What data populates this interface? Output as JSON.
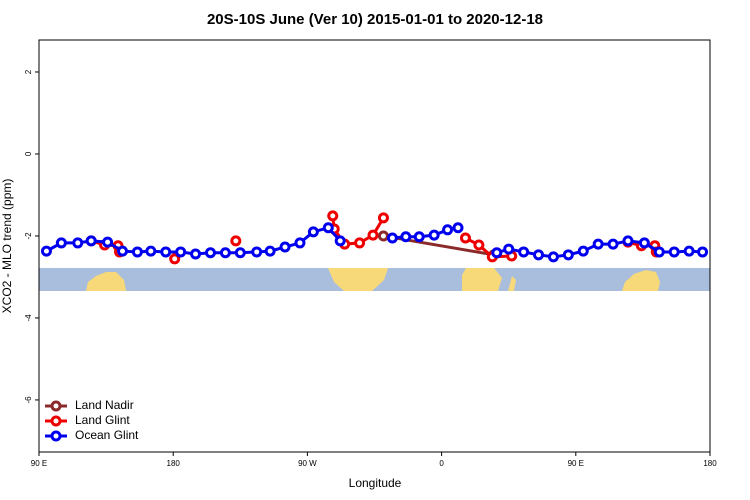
{
  "chart_data": {
    "type": "line",
    "title": "20S-10S June (Ver 10)   2015-01-01 to 2020-12-18",
    "x_label": "Longitude",
    "y_label": "XCO2 - MLO trend (ppm)",
    "xlim": [
      90,
      540
    ],
    "ylim": [
      -7.27,
      2.78
    ],
    "xticks": [
      {
        "value": 90,
        "label": "90 E"
      },
      180,
      {
        "value": 270,
        "label": "90 W"
      },
      {
        "value": 360,
        "label": "0"
      },
      {
        "value": 450,
        "label": "90 E"
      },
      {
        "value": 540,
        "label": "180"
      }
    ],
    "yticks": [
      -6,
      -4,
      -2,
      0,
      2
    ],
    "legend": "bottom-left",
    "series": [
      {
        "name": "Land Nadir",
        "color": "#8b2a2a",
        "x": [
          321,
          395
        ],
        "values": [
          -2.0,
          -2.46
        ]
      },
      {
        "name": "Land Glint",
        "color": "#ee0000",
        "x": [
          125,
          134,
          143,
          144,
          null,
          181,
          null,
          222,
          null,
          287,
          288,
          295,
          305,
          314,
          321,
          null,
          376,
          385,
          394,
          407,
          null,
          485,
          494,
          503,
          504
        ],
        "values": [
          -2.12,
          -2.22,
          -2.24,
          -2.39,
          null,
          -2.56,
          null,
          -2.12,
          null,
          -1.51,
          -1.83,
          -2.2,
          -2.17,
          -1.98,
          -1.56,
          null,
          -2.05,
          -2.22,
          -2.51,
          -2.49,
          null,
          -2.15,
          -2.24,
          -2.24,
          -2.39
        ]
      },
      {
        "name": "Ocean Glint",
        "color": "#0000ee",
        "x": [
          95,
          105,
          116,
          125,
          136,
          146,
          156,
          165,
          175,
          185,
          195,
          205,
          215,
          225,
          236,
          245,
          255,
          265,
          274,
          284,
          292,
          null,
          327,
          336,
          345,
          355,
          364,
          371,
          null,
          397,
          405,
          415,
          425,
          435,
          445,
          455,
          465,
          475,
          485,
          496,
          506,
          516,
          526,
          535
        ],
        "values": [
          -2.37,
          -2.17,
          -2.17,
          -2.12,
          -2.15,
          -2.37,
          -2.39,
          -2.37,
          -2.39,
          -2.39,
          -2.44,
          -2.41,
          -2.41,
          -2.41,
          -2.39,
          -2.37,
          -2.27,
          -2.17,
          -1.9,
          -1.8,
          -2.12,
          null,
          -2.05,
          -2.02,
          -2.02,
          -1.98,
          -1.85,
          -1.8,
          null,
          -2.41,
          -2.32,
          -2.39,
          -2.46,
          -2.51,
          -2.46,
          -2.37,
          -2.2,
          -2.2,
          -2.12,
          -2.17,
          -2.39,
          -2.39,
          -2.37,
          -2.39
        ]
      }
    ]
  }
}
